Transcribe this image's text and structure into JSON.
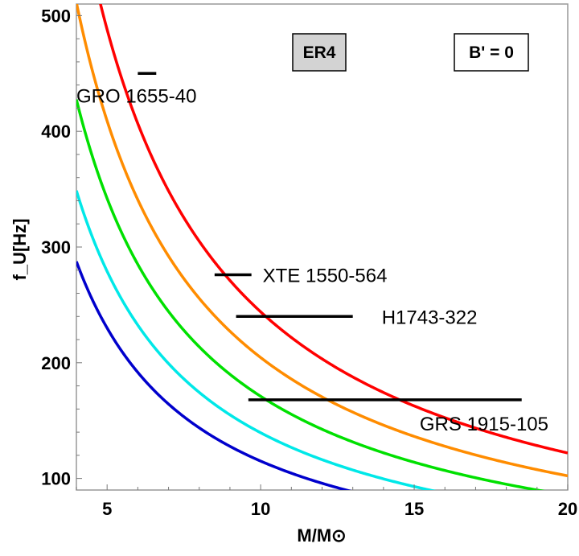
{
  "chart_data": {
    "type": "line",
    "xlabel": "M/M⊙",
    "ylabel": "f_U[Hz]",
    "xlim": [
      4,
      20
    ],
    "ylim": [
      90,
      510
    ],
    "xticks": [
      5,
      10,
      15,
      20
    ],
    "yticks": [
      100,
      200,
      300,
      400,
      500
    ],
    "grid": false,
    "badges": [
      "ER4",
      "B' = 0"
    ],
    "series": [
      {
        "color": "#ff0000",
        "k": 2440
      },
      {
        "color": "#ff8c00",
        "k": 2045
      },
      {
        "color": "#00e000",
        "k": 1710
      },
      {
        "color": "#00e8e8",
        "k": 1395
      },
      {
        "color": "#0000cc",
        "k": 1150
      }
    ],
    "sources": [
      {
        "name": "GRO 1655-40",
        "m_range": [
          6.0,
          6.6
        ],
        "f": 450
      },
      {
        "name": "XTE 1550-564",
        "m_range": [
          8.5,
          9.7
        ],
        "f": 276
      },
      {
        "name": "H1743-322",
        "m_range": [
          9.2,
          13.0
        ],
        "f": 240
      },
      {
        "name": "GRS 1915-105",
        "m_range": [
          9.6,
          18.5
        ],
        "f": 168
      }
    ]
  }
}
